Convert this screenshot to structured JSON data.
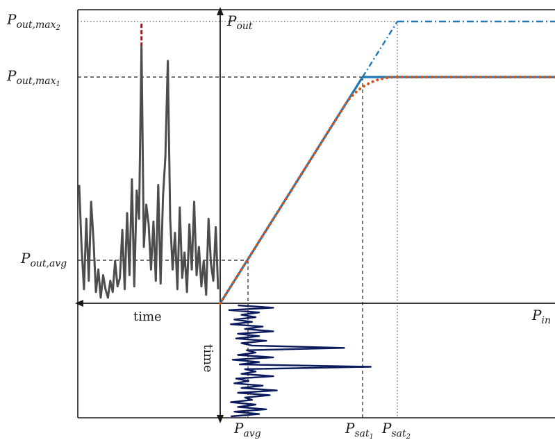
{
  "labels": {
    "pout_max2": {
      "main": "P",
      "sub": "out,max",
      "subsub": "2"
    },
    "pout_max1": {
      "main": "P",
      "sub": "out,max",
      "subsub": "1"
    },
    "pout_avg": {
      "main": "P",
      "sub": "out,avg"
    },
    "pout_axis": {
      "main": "P",
      "sub": "out"
    },
    "pin_axis": {
      "main": "P",
      "sub": "in"
    },
    "pavg": {
      "main": "P",
      "sub": "avg"
    },
    "psat1": {
      "main": "P",
      "sub": "sat",
      "subsub": "1"
    },
    "psat2": {
      "main": "P",
      "sub": "sat",
      "subsub": "2"
    },
    "time_horizontal": "time",
    "time_vertical": "time"
  },
  "colors": {
    "axis": "#1a1a1a",
    "guide": "#333333",
    "ideal_amplifier": "#1f77b4",
    "saturating_amplifier": "#d95319",
    "output_signal": "#4d4d4d",
    "output_peaks": "#8b1a1a",
    "input_signal": "#0b1a5c"
  },
  "diagram": {
    "description_hidden": false,
    "transfer_curves": [
      {
        "name": "",
        "style": "dash-dot",
        "color_key": "ideal_amplifier"
      },
      {
        "name": "",
        "style": "solid",
        "color_key": "ideal_amplifier"
      },
      {
        "name": "",
        "style": "dotted",
        "color_key": "saturating_amplifier"
      }
    ],
    "output_signal_samples": [
      0.42,
      0.2,
      0.05,
      0.3,
      0.08,
      0.36,
      0.22,
      0.04,
      0.12,
      0.02,
      0.1,
      0.05,
      0.02,
      0.08,
      0.04,
      0.15,
      0.06,
      0.09,
      0.26,
      0.05,
      0.32,
      0.1,
      0.44,
      0.06,
      0.4,
      0.3,
      0.91,
      0.2,
      0.35,
      0.28,
      0.12,
      0.29,
      0.08,
      0.42,
      0.07,
      0.38,
      0.52,
      0.86,
      0.3,
      0.12,
      0.25,
      0.05,
      0.34,
      0.09,
      0.18,
      0.04,
      0.28,
      0.12,
      0.36,
      0.1,
      0.2,
      0.06,
      0.15,
      0.03,
      0.3,
      0.14,
      0.08,
      0.27,
      0.05
    ],
    "input_signal_samples": [
      0.1,
      0.3,
      0.05,
      0.22,
      0.12,
      0.2,
      0.08,
      0.18,
      0.06,
      0.24,
      0.14,
      0.3,
      0.1,
      0.22,
      0.09,
      0.26,
      0.12,
      0.18,
      0.7,
      0.15,
      0.2,
      0.1,
      0.3,
      0.07,
      0.22,
      0.11,
      0.85,
      0.14,
      0.2,
      0.12,
      0.3,
      0.09,
      0.16,
      0.08,
      0.24,
      0.12,
      0.32,
      0.1,
      0.28,
      0.14,
      0.18,
      0.06,
      0.2,
      0.1,
      0.26,
      0.08,
      0.22,
      0.06
    ]
  }
}
